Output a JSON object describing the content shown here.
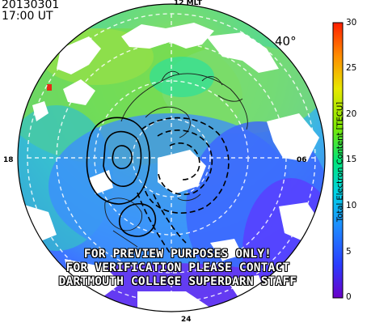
{
  "title": {
    "date": "20130301",
    "time": "17:00 UT"
  },
  "mlt_labels": {
    "top": "12 MLT",
    "left": "18",
    "right": "06",
    "bottom": "24"
  },
  "latitude_label": "40°",
  "watermark": [
    "FOR PREVIEW PURPOSES ONLY!",
    "FOR VERIFICATION PLEASE CONTACT",
    "DARTMOUTH COLLEGE SUPERDARN STAFF"
  ],
  "colorbar": {
    "title": "Total Electron Content [TECU]",
    "min": 0,
    "max": 30,
    "ticks": [
      "0",
      "5",
      "10",
      "15",
      "20",
      "25",
      "30"
    ],
    "colors": [
      "#6a00c8",
      "#2a3cff",
      "#1e8cff",
      "#00d2e6",
      "#00e676",
      "#7de800",
      "#e8e800",
      "#ff8c00",
      "#ff1e00"
    ]
  },
  "map_colors": {
    "dayside": "#7de84a",
    "evening": "#3cc8dc",
    "nightside": "#3c8cff",
    "trough": "#5a3cff",
    "gap": "#ffffff"
  }
}
